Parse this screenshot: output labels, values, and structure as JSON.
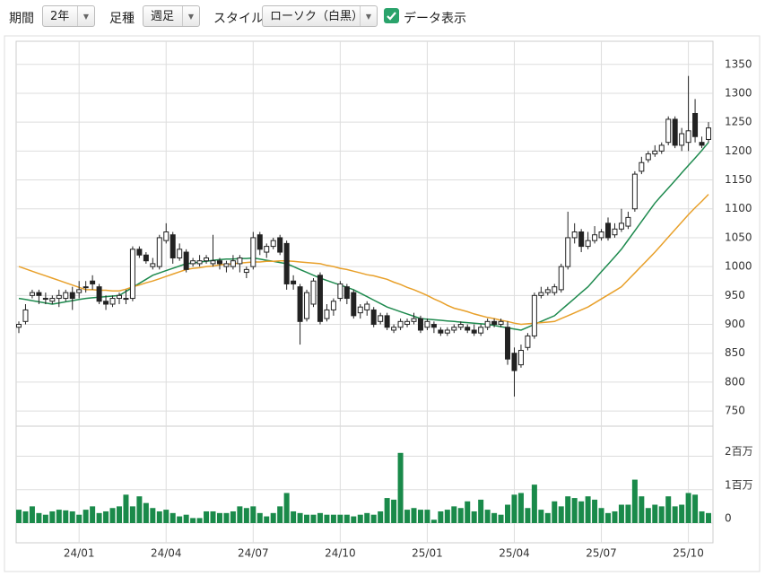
{
  "controls": {
    "period": {
      "label": "期間",
      "value": "2年"
    },
    "bar_type": {
      "label": "足種",
      "value": "週足"
    },
    "style": {
      "label": "スタイル",
      "value": "ローソク（白黒）"
    },
    "data_display": {
      "label": "データ表示",
      "checked": true
    }
  },
  "chart_data": {
    "type": "candlestick",
    "categories": [
      null,
      null,
      null,
      null,
      null,
      null,
      null,
      null,
      null,
      "24/01",
      null,
      null,
      null,
      null,
      null,
      null,
      null,
      null,
      null,
      null,
      null,
      null,
      "24/04",
      null,
      null,
      null,
      null,
      null,
      null,
      null,
      null,
      null,
      null,
      null,
      null,
      "24/07",
      null,
      null,
      null,
      null,
      null,
      null,
      null,
      null,
      null,
      null,
      null,
      null,
      "24/10",
      null,
      null,
      null,
      null,
      null,
      null,
      null,
      null,
      null,
      null,
      null,
      null,
      "25/01",
      null,
      null,
      null,
      null,
      null,
      null,
      null,
      null,
      null,
      null,
      null,
      null,
      "25/04",
      null,
      null,
      null,
      null,
      null,
      null,
      null,
      null,
      null,
      null,
      null,
      null,
      "25/07",
      null,
      null,
      null,
      null,
      null,
      null,
      null,
      null,
      null,
      null,
      null,
      null,
      "25/10",
      null,
      null,
      null
    ],
    "open": [
      895,
      905,
      950,
      955,
      945,
      940,
      945,
      945,
      955,
      955,
      965,
      975,
      965,
      940,
      935,
      945,
      945,
      945,
      1030,
      1020,
      1000,
      1000,
      1045,
      1055,
      1015,
      1025,
      1005,
      1005,
      1010,
      1005,
      1010,
      1000,
      1000,
      1005,
      990,
      1000,
      1055,
      1025,
      1035,
      1050,
      1040,
      975,
      965,
      910,
      935,
      985,
      910,
      925,
      945,
      965,
      955,
      920,
      925,
      925,
      905,
      915,
      890,
      895,
      900,
      905,
      910,
      895,
      900,
      890,
      885,
      890,
      895,
      895,
      890,
      885,
      895,
      905,
      900,
      895,
      850,
      830,
      860,
      880,
      950,
      955,
      955,
      960,
      1000,
      1050,
      1060,
      1035,
      1045,
      1050,
      1075,
      1055,
      1065,
      1070,
      1100,
      1165,
      1185,
      1195,
      1200,
      1215,
      1255,
      1210,
      1215,
      1265,
      1215,
      1220
    ],
    "high": [
      905,
      935,
      960,
      960,
      955,
      950,
      960,
      960,
      965,
      975,
      975,
      985,
      970,
      950,
      950,
      955,
      960,
      1035,
      1035,
      1025,
      1015,
      1055,
      1075,
      1060,
      1040,
      1030,
      1015,
      1020,
      1020,
      1055,
      1015,
      1010,
      1020,
      1020,
      1000,
      1060,
      1060,
      1040,
      1050,
      1055,
      1045,
      985,
      970,
      960,
      980,
      990,
      935,
      945,
      975,
      970,
      960,
      935,
      940,
      930,
      920,
      920,
      900,
      910,
      910,
      920,
      915,
      910,
      905,
      895,
      895,
      900,
      905,
      900,
      900,
      900,
      910,
      910,
      910,
      905,
      860,
      865,
      885,
      955,
      965,
      965,
      970,
      1005,
      1095,
      1075,
      1065,
      1060,
      1070,
      1065,
      1085,
      1075,
      1100,
      1095,
      1165,
      1190,
      1200,
      1210,
      1215,
      1260,
      1260,
      1240,
      1330,
      1290,
      1225,
      1250
    ],
    "low": [
      885,
      900,
      945,
      935,
      935,
      935,
      930,
      940,
      925,
      945,
      955,
      960,
      935,
      925,
      930,
      935,
      935,
      940,
      1015,
      1005,
      995,
      995,
      1040,
      1005,
      1010,
      990,
      1000,
      1000,
      1005,
      1000,
      995,
      990,
      995,
      990,
      980,
      995,
      1020,
      1015,
      1030,
      1020,
      960,
      960,
      865,
      905,
      930,
      900,
      905,
      915,
      940,
      935,
      910,
      910,
      915,
      895,
      900,
      890,
      885,
      890,
      895,
      900,
      885,
      890,
      885,
      880,
      880,
      885,
      890,
      885,
      880,
      880,
      890,
      895,
      895,
      830,
      775,
      825,
      855,
      875,
      945,
      950,
      950,
      955,
      995,
      1040,
      1025,
      1030,
      1040,
      1045,
      1045,
      1050,
      1060,
      1065,
      1095,
      1160,
      1180,
      1190,
      1195,
      1210,
      1205,
      1200,
      1200,
      1215,
      1205,
      1215
    ],
    "close": [
      900,
      925,
      955,
      950,
      945,
      945,
      950,
      955,
      945,
      960,
      965,
      970,
      940,
      935,
      945,
      950,
      945,
      1030,
      1020,
      1010,
      1005,
      1050,
      1060,
      1015,
      1030,
      995,
      1010,
      1010,
      1015,
      1010,
      1005,
      1005,
      1010,
      1015,
      995,
      1050,
      1030,
      1035,
      1045,
      1025,
      970,
      970,
      905,
      955,
      975,
      905,
      925,
      940,
      970,
      945,
      915,
      930,
      935,
      900,
      915,
      895,
      895,
      905,
      905,
      910,
      890,
      905,
      895,
      885,
      890,
      895,
      900,
      890,
      885,
      895,
      905,
      900,
      905,
      840,
      820,
      855,
      880,
      950,
      955,
      960,
      965,
      1000,
      1050,
      1060,
      1035,
      1045,
      1055,
      1060,
      1050,
      1065,
      1075,
      1085,
      1160,
      1180,
      1195,
      1200,
      1210,
      1255,
      1210,
      1230,
      1235,
      1225,
      1210,
      1240
    ],
    "series": [
      {
        "color": "#1e8a4e",
        "values": [
          945,
          943,
          941,
          939,
          937,
          935,
          937,
          939,
          941,
          943,
          945,
          946,
          947,
          948,
          949,
          950,
          957,
          964,
          971,
          978,
          985,
          989,
          993,
          997,
          1001,
          1005,
          1006,
          1008,
          1009,
          1011,
          1012,
          1013,
          1013,
          1014,
          1014,
          1015,
          1013,
          1011,
          1009,
          1007,
          1005,
          1000,
          995,
          990,
          985,
          980,
          976,
          972,
          968,
          964,
          960,
          954,
          948,
          942,
          936,
          930,
          926,
          922,
          918,
          914,
          910,
          909,
          908,
          907,
          906,
          905,
          904,
          903,
          902,
          901,
          900,
          898,
          896,
          894,
          892,
          890,
          895,
          900,
          905,
          910,
          915,
          925,
          935,
          945,
          955,
          965,
          978,
          991,
          1004,
          1017,
          1030,
          1046,
          1062,
          1078,
          1094,
          1110,
          1123,
          1136,
          1149,
          1162,
          1175,
          1188,
          1201,
          1215
        ]
      },
      {
        "color": "#e8a02a",
        "values": [
          1000,
          996,
          992,
          988,
          984,
          980,
          976,
          972,
          968,
          964,
          960,
          960,
          959,
          959,
          958,
          958,
          961,
          965,
          968,
          972,
          975,
          979,
          983,
          987,
          991,
          995,
          997,
          998,
          1000,
          1001,
          1003,
          1004,
          1005,
          1006,
          1007,
          1008,
          1008,
          1009,
          1009,
          1010,
          1010,
          1009,
          1008,
          1007,
          1006,
          1005,
          1002,
          1000,
          997,
          995,
          992,
          989,
          986,
          984,
          981,
          978,
          973,
          969,
          964,
          960,
          955,
          950,
          944,
          939,
          933,
          928,
          925,
          922,
          918,
          915,
          912,
          910,
          907,
          905,
          902,
          900,
          901,
          902,
          903,
          904,
          905,
          910,
          915,
          920,
          925,
          930,
          937,
          944,
          951,
          958,
          965,
          977,
          989,
          1001,
          1013,
          1025,
          1038,
          1051,
          1064,
          1077,
          1090,
          1102,
          1113,
          1125
        ]
      }
    ],
    "ylim": [
      730,
      1390
    ],
    "yticks": [
      750,
      800,
      850,
      900,
      950,
      1000,
      1050,
      1100,
      1150,
      1200,
      1250,
      1300,
      1350
    ],
    "grid": true,
    "volume": {
      "color": "#1a8a4a",
      "ylim": [
        0,
        2900000
      ],
      "yticks": [
        {
          "value": 0,
          "label": "0"
        },
        {
          "value": 1000000,
          "label": "1百万"
        },
        {
          "value": 2000000,
          "label": "2百万"
        }
      ],
      "values": [
        400000,
        350000,
        500000,
        300000,
        250000,
        350000,
        400000,
        380000,
        350000,
        250000,
        400000,
        500000,
        300000,
        350000,
        450000,
        500000,
        850000,
        500000,
        800000,
        600000,
        450000,
        350000,
        400000,
        300000,
        200000,
        250000,
        150000,
        150000,
        350000,
        350000,
        300000,
        300000,
        350000,
        500000,
        450000,
        500000,
        300000,
        200000,
        300000,
        500000,
        900000,
        350000,
        300000,
        250000,
        250000,
        300000,
        250000,
        250000,
        250000,
        250000,
        200000,
        250000,
        300000,
        250000,
        350000,
        750000,
        700000,
        2100000,
        400000,
        450000,
        400000,
        400000,
        100000,
        350000,
        400000,
        500000,
        450000,
        650000,
        350000,
        700000,
        400000,
        300000,
        250000,
        550000,
        850000,
        900000,
        450000,
        1150000,
        400000,
        300000,
        650000,
        500000,
        800000,
        750000,
        650000,
        800000,
        700000,
        450000,
        300000,
        350000,
        550000,
        550000,
        1300000,
        800000,
        450000,
        550000,
        500000,
        800000,
        500000,
        550000,
        900000,
        850000,
        350000,
        300000
      ]
    }
  }
}
